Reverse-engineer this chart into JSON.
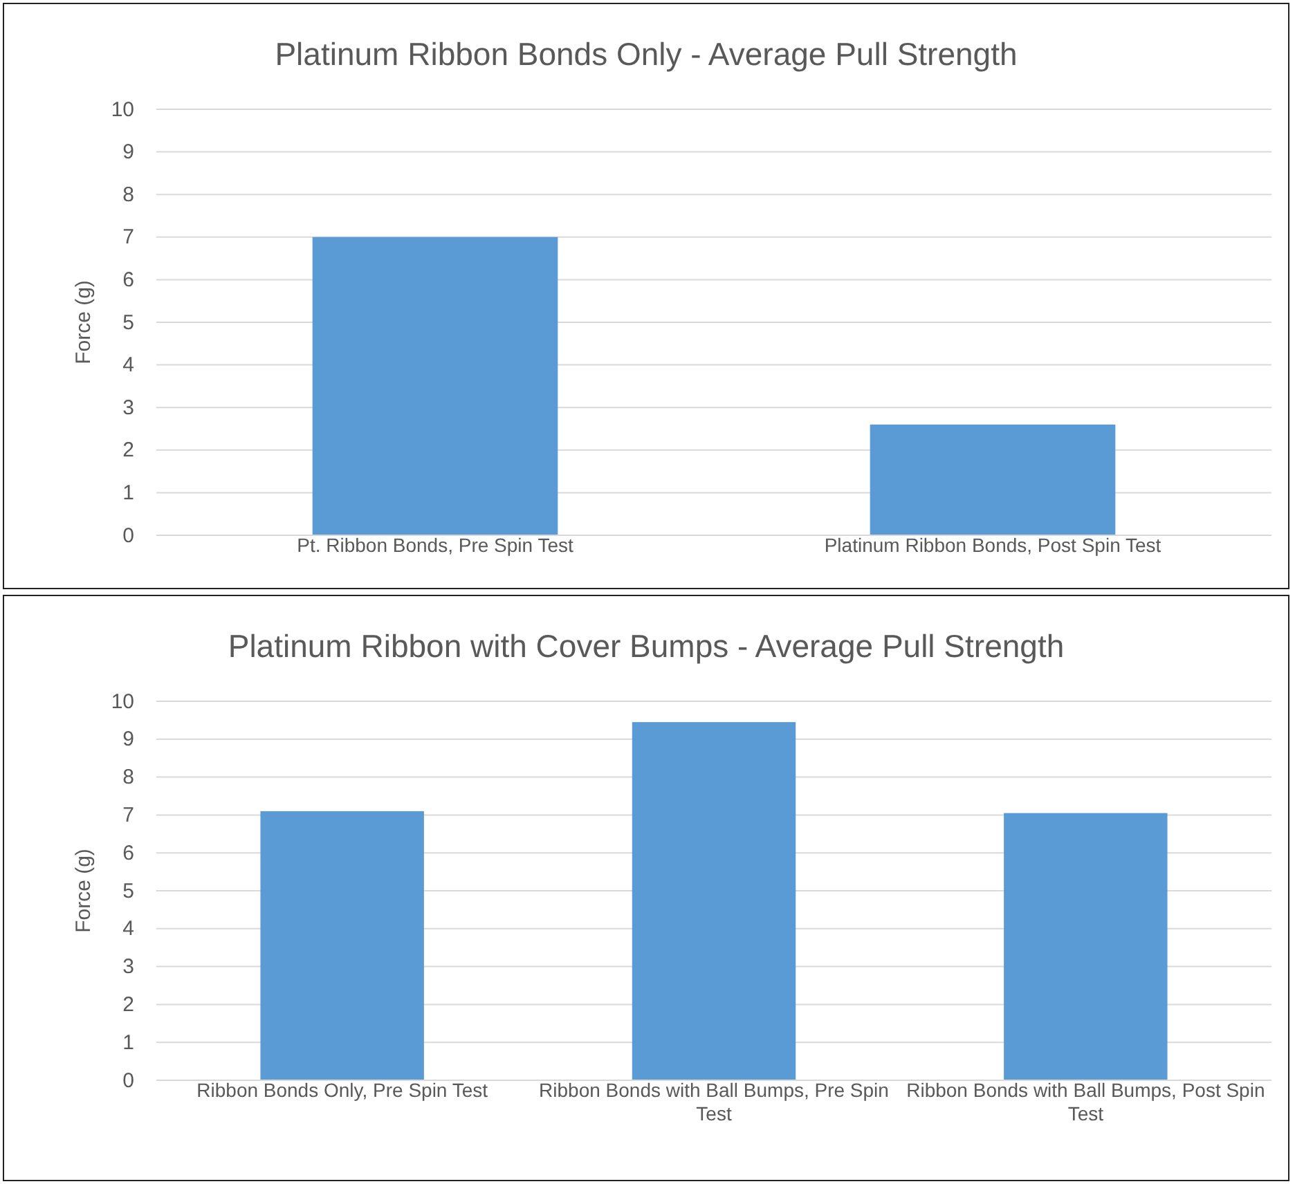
{
  "chart_data": [
    {
      "type": "bar",
      "title": "Platinum Ribbon Bonds Only - Average Pull Strength",
      "ylabel": "Force (g)",
      "categories": [
        "Pt. Ribbon Bonds, Pre Spin Test",
        "Platinum Ribbon Bonds, Post Spin Test"
      ],
      "values": [
        7.0,
        2.6
      ],
      "color": "#5b9bd5",
      "ylim": [
        0,
        10
      ],
      "yticks": [
        0,
        1,
        2,
        3,
        4,
        5,
        6,
        7,
        8,
        9,
        10
      ],
      "grid": "y"
    },
    {
      "type": "bar",
      "title": "Platinum Ribbon with Cover Bumps - Average Pull Strength",
      "ylabel": "Force (g)",
      "categories": [
        "Ribbon Bonds Only, Pre Spin Test",
        "Ribbon Bonds with Ball Bumps, Pre Spin Test",
        "Ribbon Bonds with Ball Bumps, Post Spin Test"
      ],
      "values": [
        7.1,
        9.45,
        7.05
      ],
      "color": "#5b9bd5",
      "ylim": [
        0,
        10
      ],
      "yticks": [
        0,
        1,
        2,
        3,
        4,
        5,
        6,
        7,
        8,
        9,
        10
      ],
      "grid": "y"
    }
  ]
}
